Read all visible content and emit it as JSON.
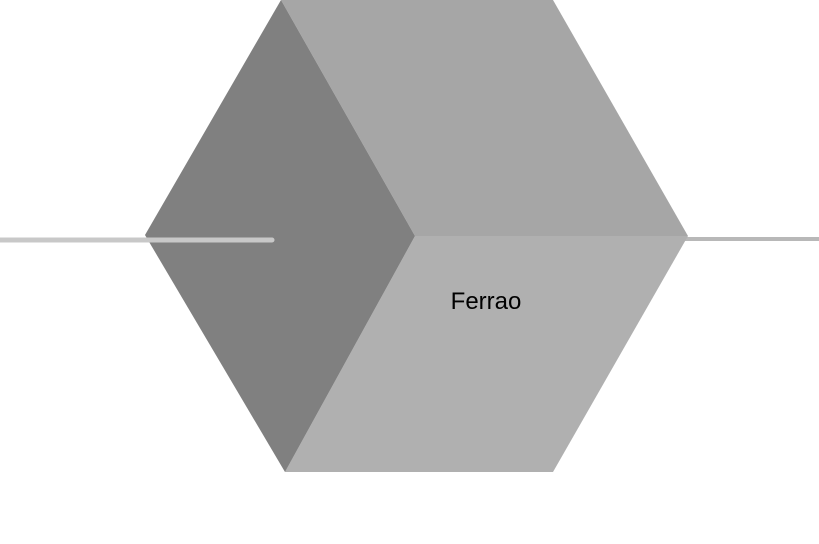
{
  "cube": {
    "label": "Ferrao",
    "colors": {
      "left_face": "#808080",
      "top_face": "#a6a6a6",
      "front_face": "#b0b0b0",
      "connector": "#c8c8c8"
    }
  }
}
